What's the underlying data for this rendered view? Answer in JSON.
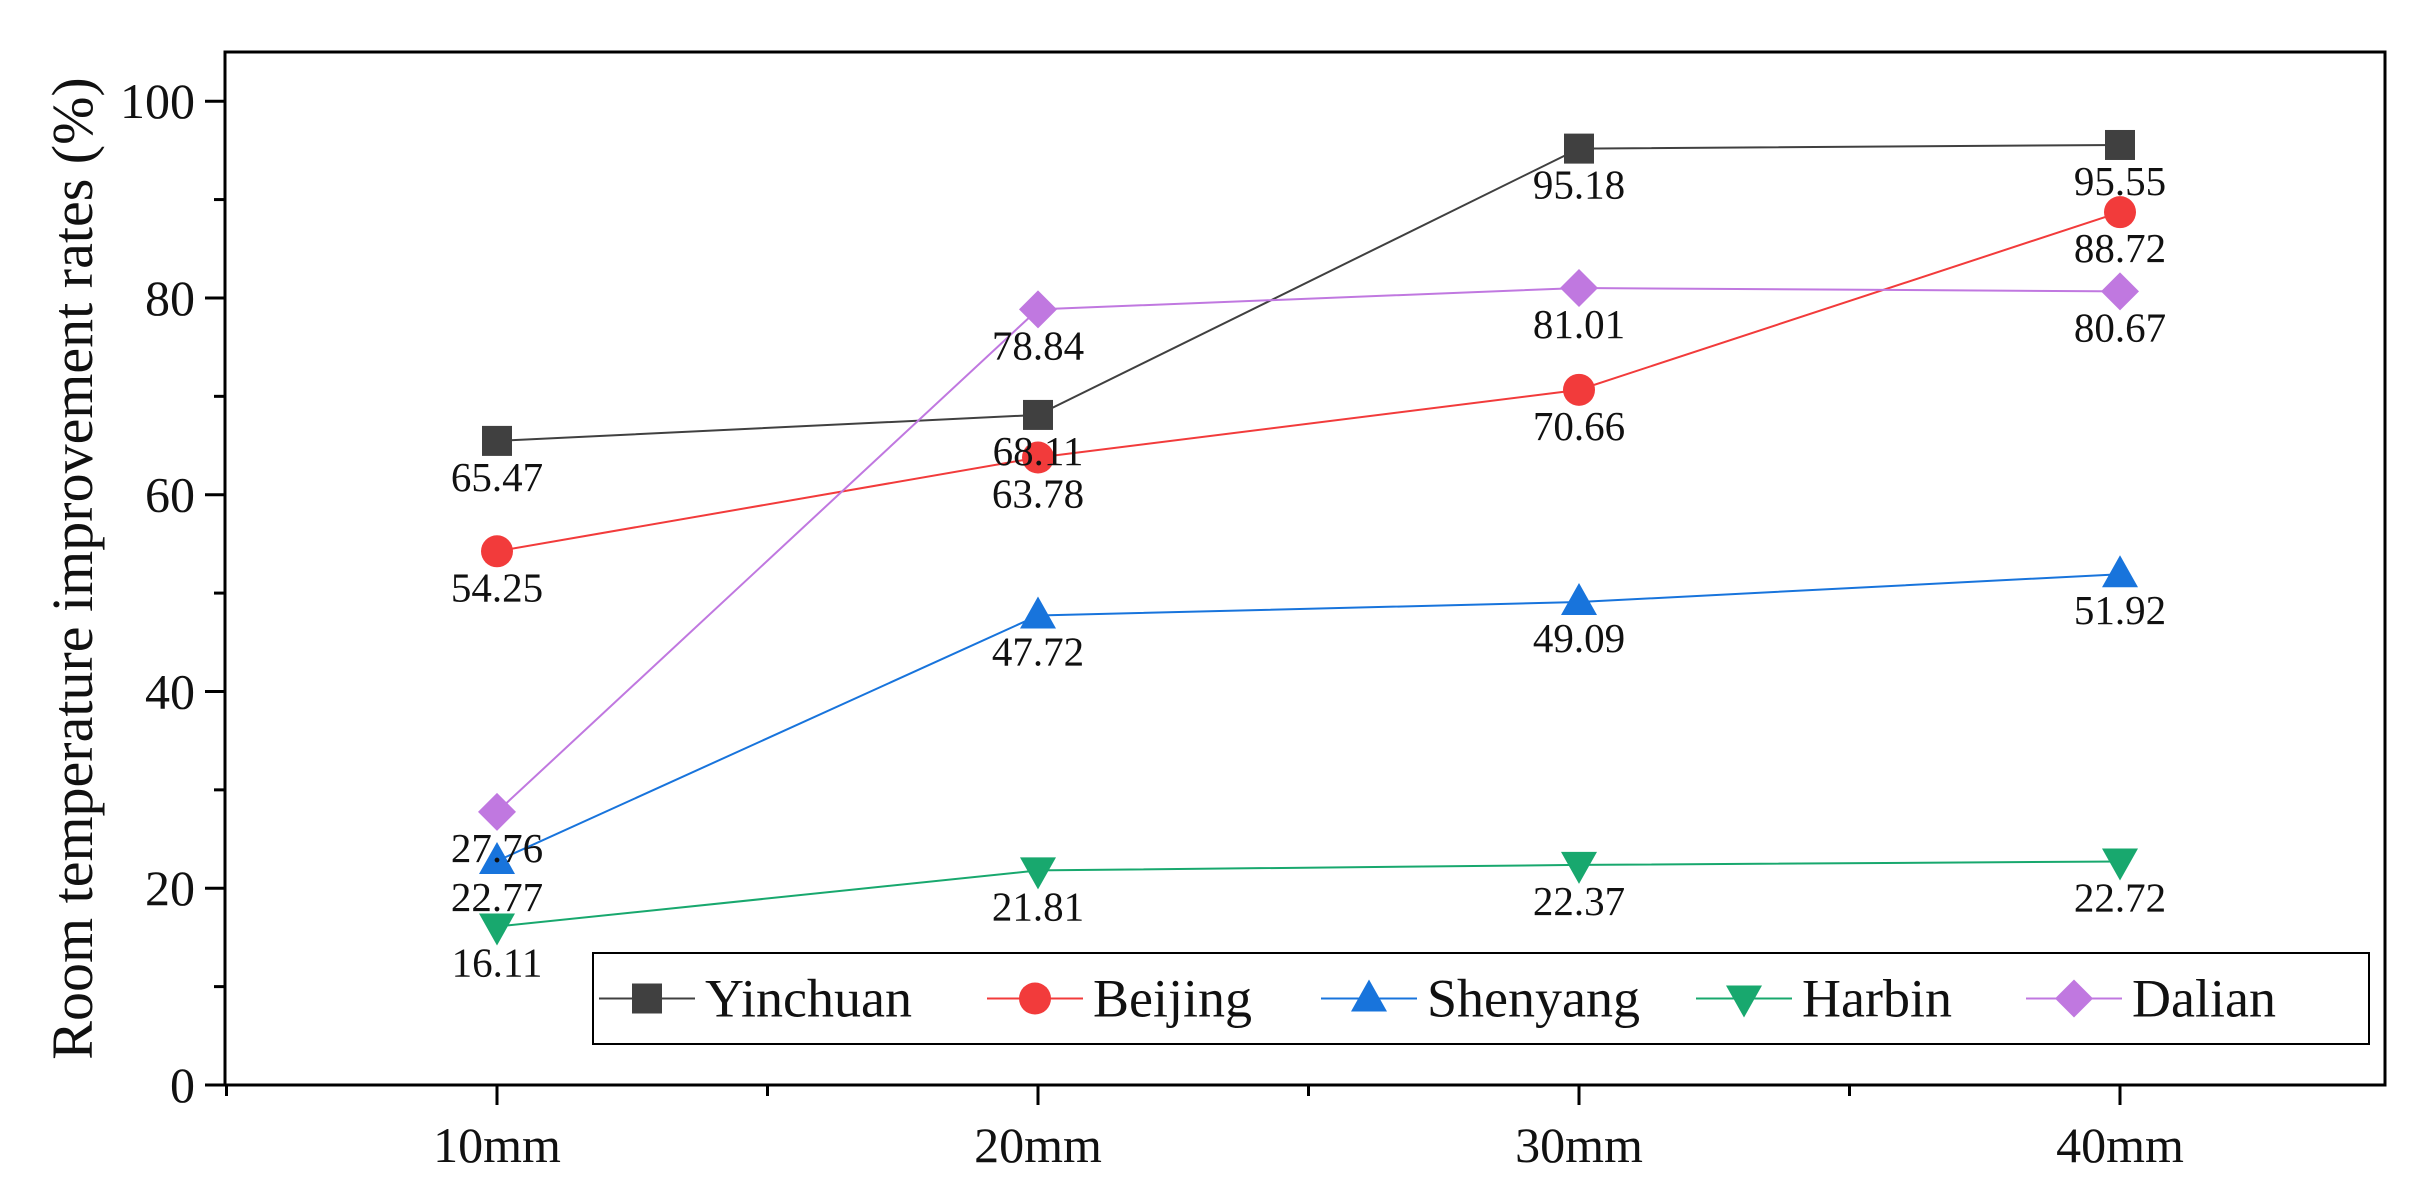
{
  "chart_data": {
    "type": "line",
    "title": "",
    "xlabel": "",
    "ylabel": "Room temperature improvement rates (%)",
    "categories": [
      "10mm",
      "20mm",
      "30mm",
      "40mm"
    ],
    "ylim": [
      0,
      105
    ],
    "yticks": [
      0,
      20,
      40,
      60,
      80,
      100
    ],
    "grid": false,
    "legend_position": "bottom-right",
    "series": [
      {
        "name": "Yinchuan",
        "marker": "square",
        "color": "#404040",
        "values": [
          65.47,
          68.11,
          95.18,
          95.55
        ],
        "labels": [
          "65.47",
          "68.11",
          "95.18",
          "95.55"
        ]
      },
      {
        "name": "Beijing",
        "marker": "circle",
        "color": "#f23b3b",
        "values": [
          54.25,
          63.78,
          70.66,
          88.72
        ],
        "labels": [
          "54.25",
          "63.78",
          "70.66",
          "88.72"
        ]
      },
      {
        "name": "Shenyang",
        "marker": "triangle-up",
        "color": "#1874dc",
        "values": [
          22.77,
          47.72,
          49.09,
          51.92
        ],
        "labels": [
          "22.77",
          "47.72",
          "49.09",
          "51.92"
        ]
      },
      {
        "name": "Harbin",
        "marker": "triangle-down",
        "color": "#18a86e",
        "values": [
          16.11,
          21.81,
          22.37,
          22.72
        ],
        "labels": [
          "16.11",
          "21.81",
          "22.37",
          "22.72"
        ]
      },
      {
        "name": "Dalian",
        "marker": "diamond",
        "color": "#c078e0",
        "values": [
          27.76,
          78.84,
          81.01,
          80.67
        ],
        "labels": [
          "27.76",
          "78.84",
          "81.01",
          "80.67"
        ]
      }
    ]
  }
}
